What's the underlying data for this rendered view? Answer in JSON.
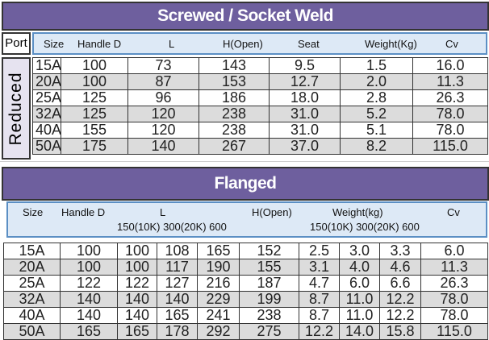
{
  "screwed": {
    "title": "Screwed / Socket Weld",
    "port_label": "Port",
    "port_type": "Reduced",
    "headers": [
      "Size",
      "Handle D",
      "L",
      "H(Open)",
      "Seat",
      "Weight(Kg)",
      "Cv"
    ],
    "rows": [
      [
        "15A",
        "100",
        "73",
        "143",
        "9.5",
        "1.5",
        "16.0"
      ],
      [
        "20A",
        "100",
        "87",
        "153",
        "12.7",
        "2.0",
        "11.3"
      ],
      [
        "25A",
        "125",
        "96",
        "186",
        "18.0",
        "2.8",
        "26.3"
      ],
      [
        "32A",
        "125",
        "120",
        "238",
        "31.0",
        "5.2",
        "78.0"
      ],
      [
        "40A",
        "155",
        "120",
        "238",
        "31.0",
        "5.1",
        "78.0"
      ],
      [
        "50A",
        "175",
        "140",
        "267",
        "37.0",
        "8.2",
        "115.0"
      ]
    ]
  },
  "flanged": {
    "title": "Flanged",
    "headers": {
      "size": "Size",
      "handle": "Handle D",
      "l": "L",
      "l_sub": "150(10K) 300(20K) 600",
      "h": "H(Open)",
      "weight": "Weight(kg)",
      "weight_sub": "150(10K) 300(20K) 600",
      "cv": "Cv"
    },
    "rows": [
      [
        "15A",
        "100",
        "100",
        "108",
        "165",
        "152",
        "2.5",
        "3.0",
        "3.3",
        "6.0"
      ],
      [
        "20A",
        "100",
        "100",
        "117",
        "190",
        "155",
        "3.1",
        "4.0",
        "4.6",
        "11.3"
      ],
      [
        "25A",
        "122",
        "122",
        "127",
        "216",
        "187",
        "4.7",
        "6.0",
        "6.6",
        "26.3"
      ],
      [
        "32A",
        "140",
        "140",
        "140",
        "229",
        "199",
        "8.7",
        "11.0",
        "12.2",
        "78.0"
      ],
      [
        "40A",
        "140",
        "140",
        "165",
        "241",
        "238",
        "8.7",
        "11.0",
        "12.2",
        "78.0"
      ],
      [
        "50A",
        "165",
        "165",
        "178",
        "292",
        "275",
        "12.2",
        "14.0",
        "15.8",
        "115.0"
      ]
    ]
  }
}
